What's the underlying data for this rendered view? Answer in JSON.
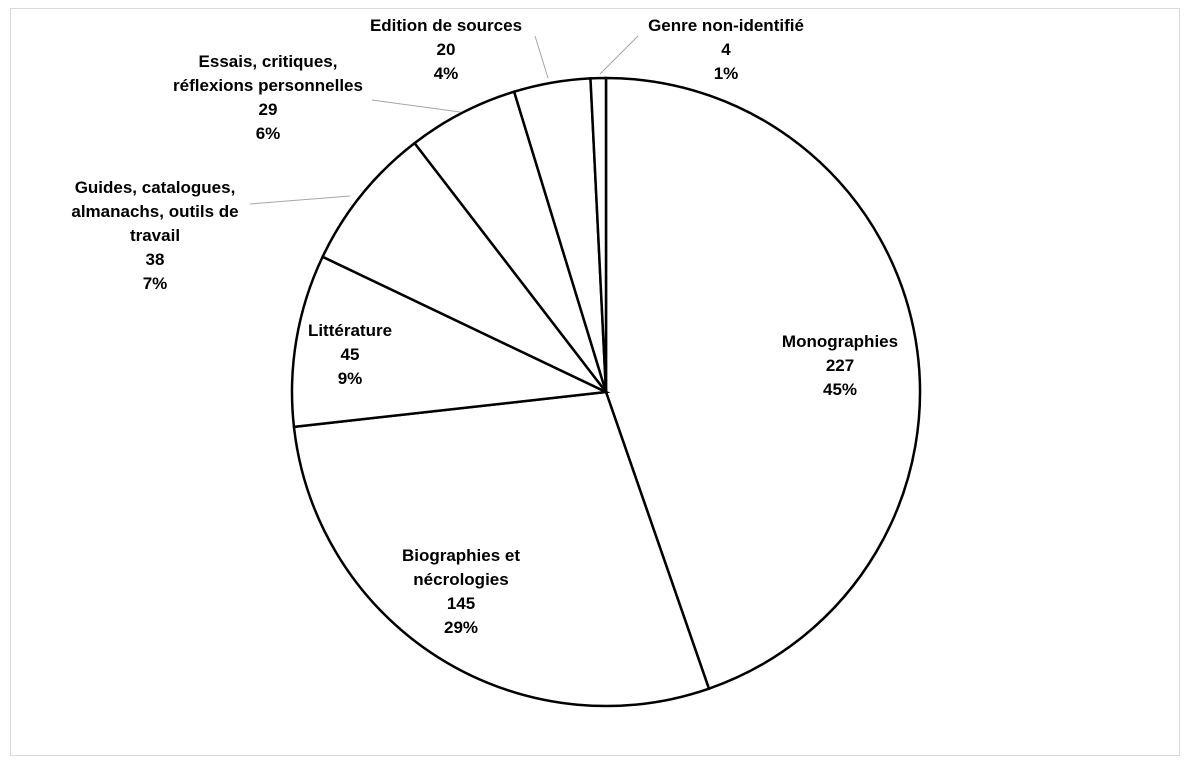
{
  "chart_data": {
    "type": "pie",
    "title": "",
    "slices": [
      {
        "label": [
          "Monographies"
        ],
        "value": 227,
        "percent": "45%"
      },
      {
        "label": [
          "Biographies et",
          "nécrologies"
        ],
        "value": 145,
        "percent": "29%"
      },
      {
        "label": [
          "Littérature"
        ],
        "value": 45,
        "percent": "9%"
      },
      {
        "label": [
          "Guides, catalogues,",
          "almanachs, outils de",
          "travail"
        ],
        "value": 38,
        "percent": "7%"
      },
      {
        "label": [
          "Essais, critiques,",
          "réflexions personnelles"
        ],
        "value": 29,
        "percent": "6%"
      },
      {
        "label": [
          "Edition de sources"
        ],
        "value": 20,
        "percent": "4%"
      },
      {
        "label": [
          "Genre non-identifié"
        ],
        "value": 4,
        "percent": "1%"
      }
    ],
    "start_angle": "12 o'clock",
    "direction": "clockwise",
    "colors": {
      "fill": "#ffffff",
      "stroke": "#000000",
      "leader": "#a6a6a6"
    }
  }
}
